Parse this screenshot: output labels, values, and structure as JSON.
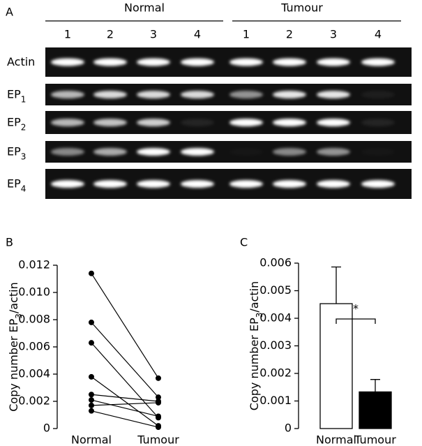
{
  "panel_a": {
    "label": "A",
    "groups": [
      "Normal",
      "Tumour"
    ],
    "lanes": [
      "1",
      "2",
      "3",
      "4",
      "1",
      "2",
      "3",
      "4"
    ],
    "rows": [
      {
        "name": "Actin"
      },
      {
        "name": "EP",
        "sub": "1"
      },
      {
        "name": "EP",
        "sub": "2"
      },
      {
        "name": "EP",
        "sub": "3"
      },
      {
        "name": "EP",
        "sub": "4"
      }
    ]
  },
  "chart_data": [
    {
      "type": "paired",
      "panel": "B",
      "categories": [
        "Normal",
        "Tumour"
      ],
      "ylabel": {
        "before": "Copy number EP",
        "sub": "3",
        "after": "/actin"
      },
      "color": "#000000",
      "series": [
        {
          "values": [
            0.0114,
            0.0037
          ]
        },
        {
          "values": [
            0.0078,
            0.0023
          ]
        },
        {
          "values": [
            0.0063,
            0.0008
          ]
        },
        {
          "values": [
            0.0038,
            0.0002
          ]
        },
        {
          "values": [
            0.0025,
            0.002
          ]
        },
        {
          "values": [
            0.0021,
            0.0009
          ]
        },
        {
          "values": [
            0.0017,
            0.0019
          ]
        },
        {
          "values": [
            0.0013,
            0.0001
          ]
        }
      ],
      "ylim": [
        0,
        0.012
      ],
      "yticks": [
        0,
        0.002,
        0.004,
        0.006,
        0.008,
        {
          "value": 0.01,
          "label": "0.010"
        },
        0.012
      ]
    },
    {
      "type": "bar",
      "panel": "C",
      "categories": [
        "Normal",
        "Tumour"
      ],
      "ylabel": {
        "before": "Copy number EP",
        "sub": "3",
        "after": "/actin"
      },
      "values": [
        0.00453,
        0.00133
      ],
      "errors": [
        0.00133,
        0.00045
      ],
      "colors": [
        "#ffffff",
        "#000000"
      ],
      "annotation": "*",
      "ylim": [
        0,
        0.006
      ],
      "yticks": [
        0,
        0.001,
        0.002,
        0.003,
        0.004,
        0.005,
        0.006
      ]
    }
  ]
}
